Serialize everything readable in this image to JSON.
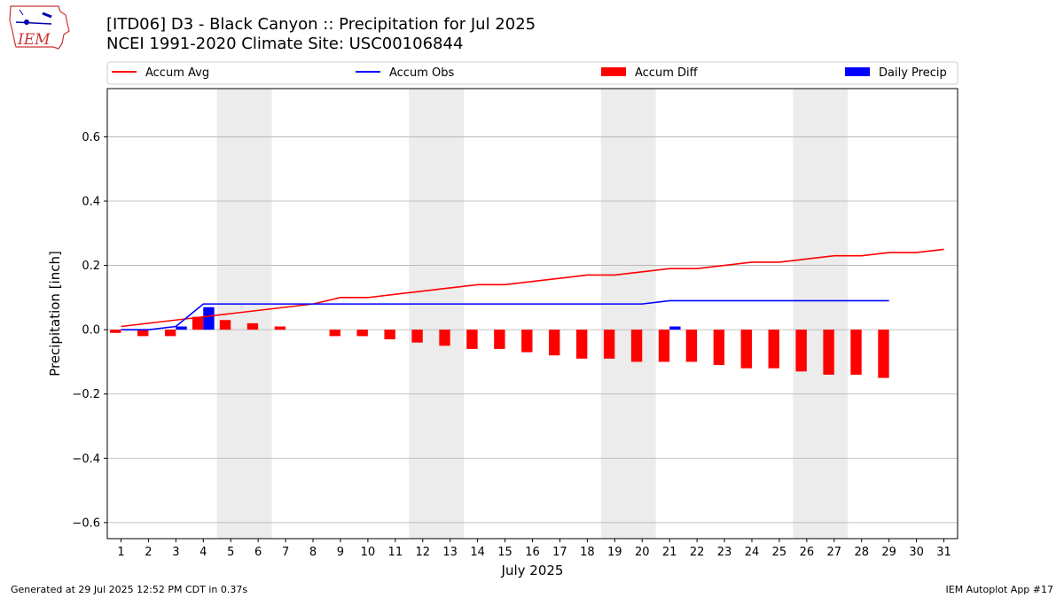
{
  "header": {
    "title": "[ITD06] D3 - Black Canyon  :: Precipitation for Jul 2025",
    "subtitle": "NCEI 1991-2020 Climate Site: USC00106844",
    "logo_text": "IEM"
  },
  "footer": {
    "left": "Generated at 29 Jul 2025 12:52 PM CDT in 0.37s",
    "right": "IEM Autoplot App #17"
  },
  "chart_data": {
    "type": "bar",
    "xlabel": "July 2025",
    "ylabel": "Precipitation [inch]",
    "ylim": [
      -0.65,
      0.75
    ],
    "xlim": [
      0.5,
      31.5
    ],
    "yticks": [
      -0.6,
      -0.4,
      -0.2,
      0.0,
      0.2,
      0.4,
      0.6
    ],
    "ytick_labels": [
      "−0.6",
      "−0.4",
      "−0.2",
      "0.0",
      "0.2",
      "0.4",
      "0.6"
    ],
    "grid": "horizontal",
    "legend_position": "top",
    "weekend_shading": [
      [
        4.5,
        6.5
      ],
      [
        11.5,
        13.5
      ],
      [
        18.5,
        20.5
      ],
      [
        25.5,
        27.5
      ]
    ],
    "days": [
      1,
      2,
      3,
      4,
      5,
      6,
      7,
      8,
      9,
      10,
      11,
      12,
      13,
      14,
      15,
      16,
      17,
      18,
      19,
      20,
      21,
      22,
      23,
      24,
      25,
      26,
      27,
      28,
      29,
      30,
      31
    ],
    "series": [
      {
        "name": "Accum Avg",
        "kind": "line",
        "color": "#ff0000",
        "x": [
          1,
          2,
          3,
          4,
          5,
          6,
          7,
          8,
          9,
          10,
          11,
          12,
          13,
          14,
          15,
          16,
          17,
          18,
          19,
          20,
          21,
          22,
          23,
          24,
          25,
          26,
          27,
          28,
          29,
          30,
          31
        ],
        "values": [
          0.01,
          0.02,
          0.03,
          0.04,
          0.05,
          0.06,
          0.07,
          0.08,
          0.1,
          0.1,
          0.11,
          0.12,
          0.13,
          0.14,
          0.14,
          0.15,
          0.16,
          0.17,
          0.17,
          0.18,
          0.19,
          0.19,
          0.2,
          0.21,
          0.21,
          0.22,
          0.23,
          0.23,
          0.24,
          0.24,
          0.25
        ]
      },
      {
        "name": "Accum Obs",
        "kind": "line",
        "color": "#0000ff",
        "x": [
          1,
          2,
          3,
          4,
          5,
          6,
          7,
          8,
          9,
          10,
          11,
          12,
          13,
          14,
          15,
          16,
          17,
          18,
          19,
          20,
          21,
          22,
          23,
          24,
          25,
          26,
          27,
          28,
          29
        ],
        "values": [
          0.0,
          0.0,
          0.01,
          0.08,
          0.08,
          0.08,
          0.08,
          0.08,
          0.08,
          0.08,
          0.08,
          0.08,
          0.08,
          0.08,
          0.08,
          0.08,
          0.08,
          0.08,
          0.08,
          0.08,
          0.09,
          0.09,
          0.09,
          0.09,
          0.09,
          0.09,
          0.09,
          0.09,
          0.09
        ]
      },
      {
        "name": "Accum Diff",
        "kind": "bar",
        "color": "#ff0000",
        "x": [
          1,
          2,
          3,
          4,
          5,
          6,
          7,
          8,
          9,
          10,
          11,
          12,
          13,
          14,
          15,
          16,
          17,
          18,
          19,
          20,
          21,
          22,
          23,
          24,
          25,
          26,
          27,
          28,
          29
        ],
        "values": [
          -0.01,
          -0.02,
          -0.02,
          0.04,
          0.03,
          0.02,
          0.01,
          0.0,
          -0.02,
          -0.02,
          -0.03,
          -0.04,
          -0.05,
          -0.06,
          -0.06,
          -0.07,
          -0.08,
          -0.09,
          -0.09,
          -0.1,
          -0.1,
          -0.1,
          -0.11,
          -0.12,
          -0.12,
          -0.13,
          -0.14,
          -0.14,
          -0.15
        ]
      },
      {
        "name": "Daily Precip",
        "kind": "bar",
        "color": "#0000ff",
        "x": [
          3,
          4,
          21
        ],
        "values": [
          0.01,
          0.07,
          0.01
        ]
      }
    ]
  }
}
